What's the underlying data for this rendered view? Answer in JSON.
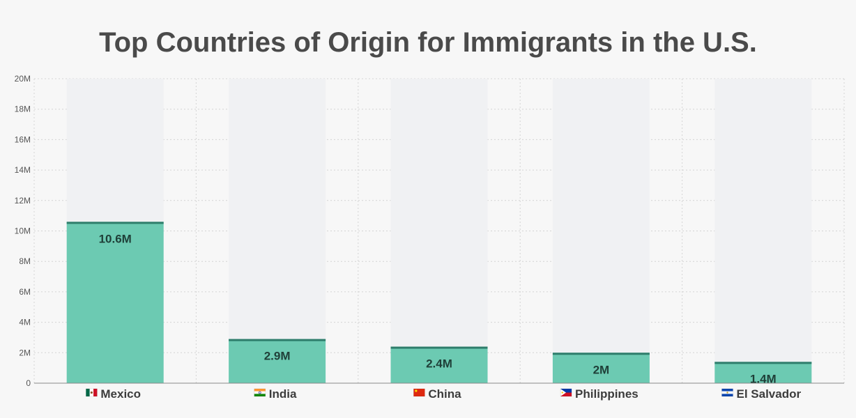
{
  "chart_data": {
    "type": "bar",
    "title": "Top Countries of Origin for Immigrants in the U.S.",
    "categories": [
      "Mexico",
      "India",
      "China",
      "Philippines",
      "El Salvador"
    ],
    "values": [
      10600000,
      2900000,
      2400000,
      2000000,
      1400000
    ],
    "value_labels": [
      "10.6M",
      "2.9M",
      "2.4M",
      "2M",
      "1.4M"
    ],
    "ylim": [
      0,
      20000000
    ],
    "yticks": [
      0,
      2000000,
      4000000,
      6000000,
      8000000,
      10000000,
      12000000,
      14000000,
      16000000,
      18000000,
      20000000
    ],
    "ytick_labels": [
      "0",
      "2M",
      "4M",
      "6M",
      "8M",
      "10M",
      "12M",
      "14M",
      "16M",
      "18M",
      "20M"
    ],
    "grid": true,
    "flag_icons": [
      "mexico-flag-icon",
      "india-flag-icon",
      "china-flag-icon",
      "philippines-flag-icon",
      "el-salvador-flag-icon"
    ],
    "colors": {
      "bar": "#6ccab2",
      "bar_top": "#2e7d6b",
      "track": "#f0f1f3",
      "grid": "#d4d4d4",
      "axis": "#888888",
      "background": "#f7f7f7"
    }
  }
}
